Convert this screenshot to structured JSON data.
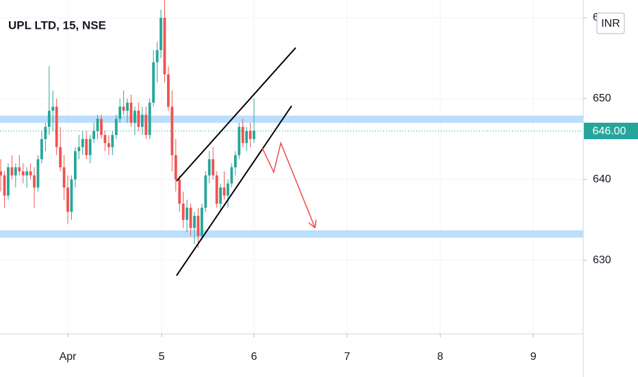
{
  "chart_data": {
    "type": "candlestick",
    "title": "UPL LTD, 15, NSE",
    "currency": "INR",
    "open": [
      641,
      640.5,
      638,
      641.5,
      640.5,
      641.5,
      641,
      640.5,
      641,
      640.5,
      639,
      642.5,
      645,
      646.5,
      648.5,
      649,
      644,
      641.5,
      639,
      636,
      640,
      643.5,
      644,
      645,
      643,
      645,
      646,
      647.5,
      645.5,
      644.5,
      644,
      645.5,
      647.5,
      649,
      648.5,
      649.5,
      647,
      648.5,
      646.5,
      648,
      645.5,
      649.5,
      654.5,
      656,
      660,
      653,
      649,
      643,
      640,
      637,
      635,
      636.5,
      634,
      635.5,
      633,
      636.5,
      640.5,
      642.5,
      640.5,
      637,
      639,
      638,
      639.5,
      641.5,
      643,
      646.5,
      644.5,
      646,
      645
    ],
    "high": [
      642.5,
      641,
      642,
      643,
      642,
      643,
      642,
      641.5,
      642,
      641.5,
      643,
      646,
      647,
      654,
      651,
      650,
      646.5,
      643,
      640.5,
      640.5,
      644,
      645.5,
      646,
      646,
      645.5,
      647,
      648,
      648,
      646,
      645.5,
      646,
      648,
      650,
      651,
      650,
      650.5,
      649,
      649.5,
      649,
      649,
      650,
      656,
      657,
      661,
      662.2,
      654,
      651,
      645,
      640.5,
      638.5,
      637.5,
      637,
      636,
      636.5,
      637,
      641,
      643.5,
      644,
      641,
      639.5,
      641,
      640,
      642,
      643.5,
      647,
      647.5,
      646.5,
      647,
      650
    ],
    "low": [
      638.5,
      636.5,
      637.5,
      640,
      639,
      640.5,
      639.5,
      639,
      640,
      636.5,
      638.5,
      642,
      643.5,
      645.5,
      646,
      643,
      641,
      637.5,
      634.5,
      635,
      639,
      642.5,
      643,
      642.5,
      642,
      644.5,
      645,
      645,
      643.5,
      643,
      643,
      645,
      647,
      648,
      647,
      646.5,
      645.5,
      646,
      645.5,
      645,
      645,
      649,
      652,
      655,
      652,
      648.5,
      641,
      638.5,
      636,
      634,
      633.5,
      633,
      632,
      631.5,
      632.5,
      636,
      639.5,
      640,
      636.5,
      636,
      637.5,
      636.5,
      639,
      640.5,
      642.5,
      644,
      643.5,
      644,
      644.5
    ],
    "close": [
      640.5,
      638,
      641.5,
      640.5,
      641.5,
      641,
      640.5,
      641,
      640.5,
      639,
      642.5,
      645,
      646.5,
      648.5,
      649,
      644,
      641.5,
      639,
      636,
      640,
      643.5,
      644,
      645,
      643,
      645,
      646,
      647.5,
      645.5,
      644.5,
      644,
      645.5,
      647.5,
      649,
      648.5,
      649.5,
      647,
      648.5,
      646.5,
      648,
      645.5,
      649.5,
      654.5,
      656,
      660,
      653,
      649,
      643,
      640,
      637,
      635,
      636.5,
      634,
      635.5,
      633,
      636.5,
      640.5,
      642.5,
      640.5,
      637,
      639,
      638,
      639.5,
      641.5,
      643,
      646.5,
      644.5,
      646,
      645,
      646
    ],
    "up_color": "#26a69a",
    "down_color": "#ef5350",
    "last_price": 646,
    "last_price_label": "646.00",
    "xlim": [
      -0.2,
      156.4
    ],
    "xticks": [
      {
        "value": 18,
        "label": "Apr"
      },
      {
        "value": 43.2,
        "label": "5"
      },
      {
        "value": 68,
        "label": "6"
      },
      {
        "value": 93,
        "label": "7"
      },
      {
        "value": 118,
        "label": "8"
      },
      {
        "value": 143,
        "label": "9"
      }
    ],
    "ylim": [
      620.9,
      662.2
    ],
    "yticks": [
      630,
      640,
      650,
      660
    ],
    "grid": true,
    "zones": [
      {
        "from": 647,
        "to": 647.9,
        "color": "#bbdefb"
      },
      {
        "from": 632.8,
        "to": 633.7,
        "color": "#bbdefb"
      }
    ],
    "trend_lines": [
      {
        "x": [
          47.2,
          79.2
        ],
        "y": [
          639.8,
          656.3
        ],
        "color": "#000000"
      },
      {
        "x": [
          47.2,
          78.1
        ],
        "y": [
          628.1,
          649.1
        ],
        "color": "#000000"
      }
    ],
    "arrow": {
      "x": [
        70.2,
        73.3,
        75.2,
        84.4
      ],
      "y": [
        643.9,
        640.9,
        644.5,
        634.0
      ],
      "color": "#ef5350"
    }
  }
}
